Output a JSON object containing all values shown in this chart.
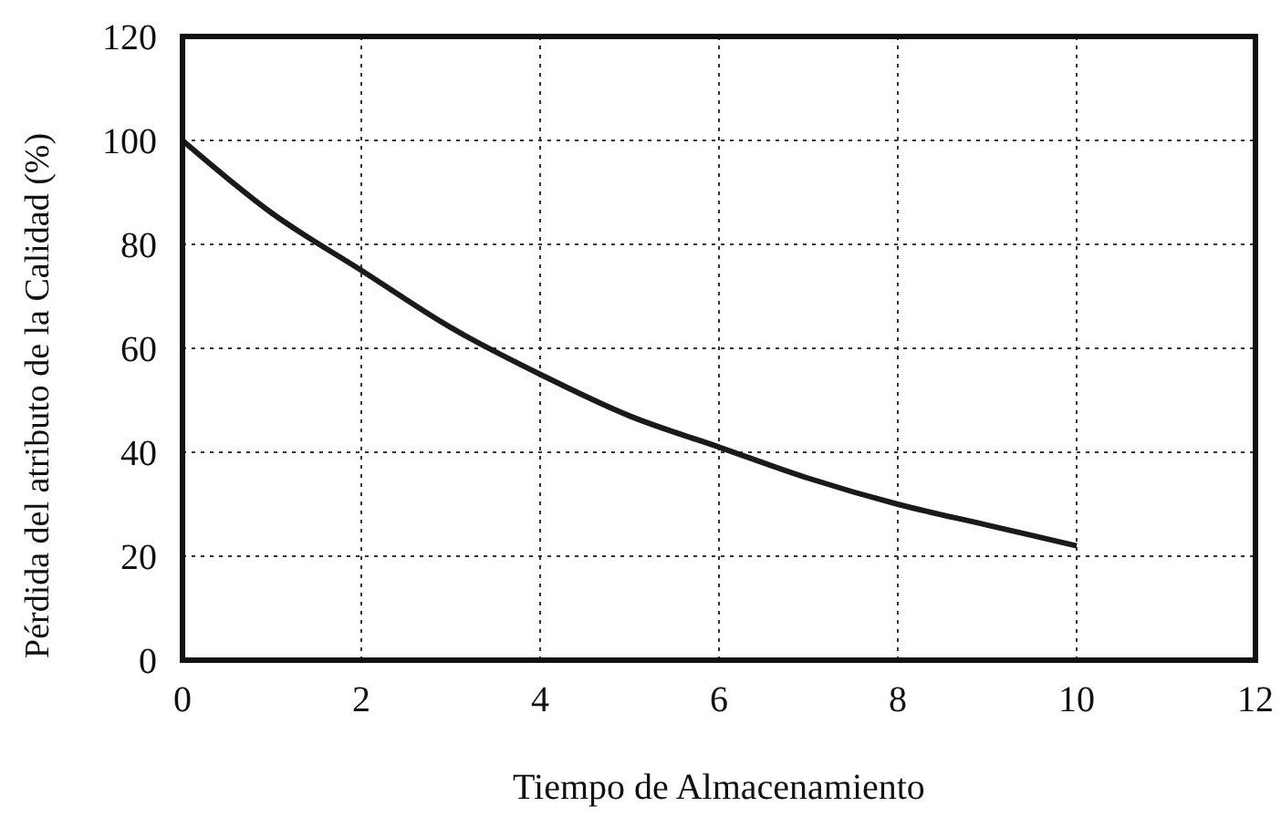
{
  "chart_data": {
    "type": "line",
    "xlabel": "Tiempo de Almacenamiento",
    "ylabel": "Pérdida del atributo de la Calidad (%)",
    "x": [
      0,
      1,
      2,
      3,
      4,
      5,
      6,
      7,
      8,
      9,
      10
    ],
    "series": [
      {
        "color": "#1a1a1a",
        "values": [
          100,
          86,
          75,
          64,
          55,
          47,
          41,
          35,
          30,
          26,
          22
        ]
      }
    ],
    "xlim": [
      0,
      12
    ],
    "xticks": [
      0,
      2,
      4,
      6,
      8,
      10,
      12
    ],
    "ylim": [
      0,
      120
    ],
    "yticks": [
      0,
      20,
      40,
      60,
      80,
      100,
      120
    ],
    "grid": true,
    "marker": "none",
    "line_style": "solid"
  }
}
